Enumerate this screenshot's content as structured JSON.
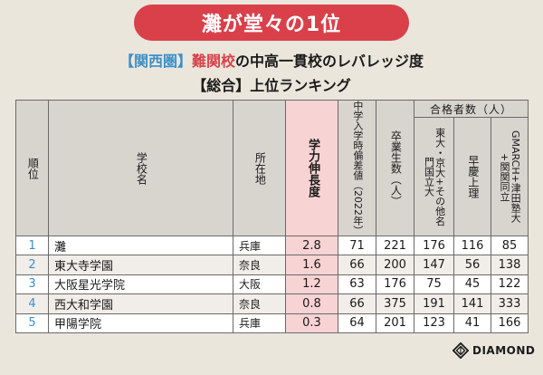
{
  "banner": "灘が堂々の1位",
  "subtitle": {
    "region": "【関西圏】",
    "hard": "難関校",
    "rest": "の中高一貫校のレバレッジ度"
  },
  "subtitle2": "【総合】上位ランキング",
  "columns": {
    "rank": "順位",
    "school": "学校名",
    "pref": "所在地",
    "leverage": "学力伸長度",
    "deviation": "中学入学時偏差値（2022年）",
    "graduates": "卒業生数（人）",
    "passers_group": "合格者数（人）",
    "elite": "東大・京大+その他名門国立大",
    "souke": "早慶上理",
    "gmarch": "GMARCH+津田塾大+関関同立"
  },
  "rows": [
    {
      "rank": "1",
      "school": "灘",
      "pref": "兵庫",
      "leverage": "2.8",
      "deviation": "71",
      "graduates": "221",
      "elite": "176",
      "souke": "116",
      "gmarch": "85"
    },
    {
      "rank": "2",
      "school": "東大寺学園",
      "pref": "奈良",
      "leverage": "1.6",
      "deviation": "66",
      "graduates": "200",
      "elite": "147",
      "souke": "56",
      "gmarch": "138"
    },
    {
      "rank": "3",
      "school": "大阪星光学院",
      "pref": "大阪",
      "leverage": "1.2",
      "deviation": "63",
      "graduates": "176",
      "elite": "75",
      "souke": "45",
      "gmarch": "122"
    },
    {
      "rank": "4",
      "school": "西大和学園",
      "pref": "奈良",
      "leverage": "0.8",
      "deviation": "66",
      "graduates": "375",
      "elite": "191",
      "souke": "141",
      "gmarch": "333"
    },
    {
      "rank": "5",
      "school": "甲陽学院",
      "pref": "兵庫",
      "leverage": "0.3",
      "deviation": "64",
      "graduates": "201",
      "elite": "123",
      "souke": "41",
      "gmarch": "166"
    }
  ],
  "logo": {
    "icon": "diamond-icon",
    "text": "DIAMOND"
  },
  "colors": {
    "accent_red": "#d9404a",
    "accent_blue": "#3b8fc9",
    "highlight_pink": "#f8d3d4",
    "header_gray": "#d8d5cf"
  }
}
